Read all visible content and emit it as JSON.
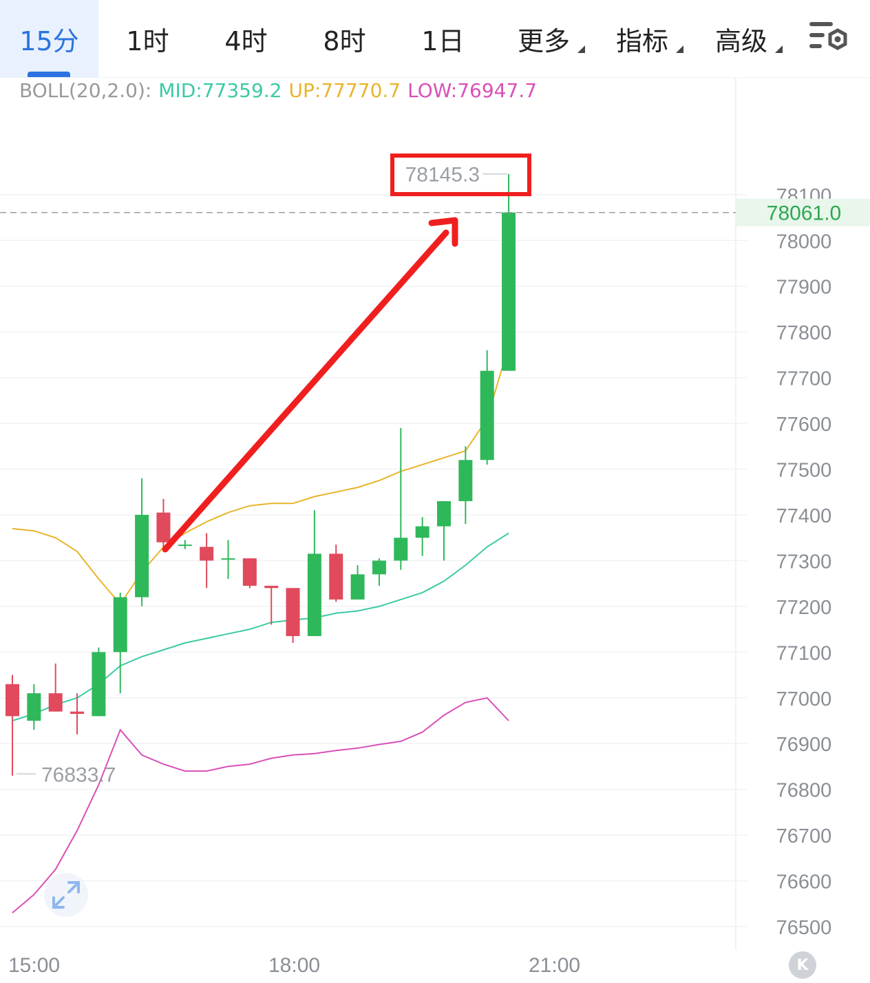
{
  "tabs": [
    {
      "label": "15分",
      "active": true
    },
    {
      "label": "1时"
    },
    {
      "label": "4时"
    },
    {
      "label": "8时"
    },
    {
      "label": "1日"
    },
    {
      "label": "更多",
      "dropdown": true
    },
    {
      "label": "指标",
      "dropdown": true
    },
    {
      "label": "高级",
      "dropdown": true
    }
  ],
  "settings_icon": "chart-settings-icon",
  "indicator": {
    "name": "BOLL(20,2.0):",
    "mid": "MID:77359.2",
    "up": "UP:77770.7",
    "low": "LOW:76947.7"
  },
  "colors": {
    "accent": "#2b73e0",
    "up_candle": "#2fb85a",
    "down_candle": "#e04a5c",
    "mid": "#3cc9a5",
    "up_band": "#e8b429",
    "low_band": "#d94fb8",
    "annotation": "#f01f1f",
    "last_price": "#2ea84f"
  },
  "chart_data": {
    "type": "candlestick",
    "ylim": [
      76450,
      78220
    ],
    "y_ticks": [
      78100,
      78000,
      77900,
      77800,
      77700,
      77600,
      77500,
      77400,
      77300,
      77200,
      77100,
      77000,
      76900,
      76800,
      76700,
      76600,
      76500
    ],
    "x_labels": [
      "15:00",
      "18:00",
      "21:00"
    ],
    "last_price": "78061.0",
    "high_label": "78145.3",
    "low_label": "76833.7",
    "candles": [
      {
        "o": 77030,
        "h": 77050,
        "l": 76830,
        "c": 76960
      },
      {
        "o": 76950,
        "h": 77030,
        "l": 76930,
        "c": 77010
      },
      {
        "o": 77010,
        "h": 77075,
        "l": 76970,
        "c": 76970
      },
      {
        "o": 76970,
        "h": 77010,
        "l": 76920,
        "c": 76965
      },
      {
        "o": 76960,
        "h": 77110,
        "l": 76960,
        "c": 77100
      },
      {
        "o": 77100,
        "h": 77230,
        "l": 77010,
        "c": 77220
      },
      {
        "o": 77220,
        "h": 77480,
        "l": 77200,
        "c": 77400
      },
      {
        "o": 77405,
        "h": 77435,
        "l": 77320,
        "c": 77340
      },
      {
        "o": 77335,
        "h": 77345,
        "l": 77325,
        "c": 77335
      },
      {
        "o": 77330,
        "h": 77360,
        "l": 77240,
        "c": 77300
      },
      {
        "o": 77305,
        "h": 77345,
        "l": 77260,
        "c": 77305
      },
      {
        "o": 77305,
        "h": 77305,
        "l": 77240,
        "c": 77245
      },
      {
        "o": 77245,
        "h": 77245,
        "l": 77160,
        "c": 77240
      },
      {
        "o": 77240,
        "h": 77240,
        "l": 77120,
        "c": 77135
      },
      {
        "o": 77135,
        "h": 77410,
        "l": 77135,
        "c": 77315
      },
      {
        "o": 77315,
        "h": 77335,
        "l": 77210,
        "c": 77215
      },
      {
        "o": 77215,
        "h": 77290,
        "l": 77215,
        "c": 77270
      },
      {
        "o": 77270,
        "h": 77305,
        "l": 77245,
        "c": 77300
      },
      {
        "o": 77300,
        "h": 77590,
        "l": 77280,
        "c": 77350
      },
      {
        "o": 77350,
        "h": 77395,
        "l": 77310,
        "c": 77375
      },
      {
        "o": 77375,
        "h": 77430,
        "l": 77300,
        "c": 77430
      },
      {
        "o": 77430,
        "h": 77550,
        "l": 77380,
        "c": 77520
      },
      {
        "o": 77520,
        "h": 77760,
        "l": 77510,
        "c": 77715
      },
      {
        "o": 77715,
        "h": 78145.3,
        "l": 77715,
        "c": 78061
      }
    ],
    "mid_band": [
      76950,
      76965,
      76985,
      77000,
      77030,
      77070,
      77090,
      77105,
      77120,
      77130,
      77140,
      77150,
      77165,
      77170,
      77175,
      77185,
      77190,
      77200,
      77215,
      77230,
      77255,
      77290,
      77330,
      77360
    ],
    "up_band": [
      77370,
      77365,
      77350,
      77320,
      77260,
      77205,
      77275,
      77330,
      77360,
      77385,
      77405,
      77420,
      77425,
      77425,
      77440,
      77450,
      77460,
      77475,
      77495,
      77510,
      77525,
      77540,
      77610,
      77770
    ],
    "low_band": [
      76530,
      76570,
      76625,
      76710,
      76810,
      76930,
      76875,
      76855,
      76840,
      76840,
      76850,
      76855,
      76868,
      76875,
      76878,
      76885,
      76890,
      76898,
      76905,
      76925,
      76962,
      76990,
      77000,
      76950
    ]
  }
}
